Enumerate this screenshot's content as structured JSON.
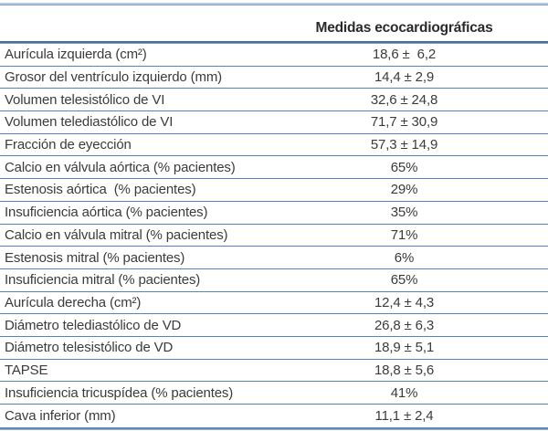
{
  "table": {
    "header": {
      "value_column_title": "Medidas ecocardiográficas"
    },
    "rows": [
      {
        "label": "Aurícula izquierda (cm²)",
        "value": "18,6 ±  6,2"
      },
      {
        "label": "Grosor del ventrículo izquierdo (mm)",
        "value": "14,4 ± 2,9"
      },
      {
        "label": "Volumen telesistólico de VI",
        "value": "32,6 ± 24,8"
      },
      {
        "label": "Volumen telediastólico de VI",
        "value": "71,7 ± 30,9"
      },
      {
        "label": "Fracción de eyección",
        "value": "57,3 ± 14,9"
      },
      {
        "label": "Calcio en válvula aórtica (% pacientes)",
        "value": "65%"
      },
      {
        "label": "Estenosis aórtica  (% pacientes)",
        "value": "29%"
      },
      {
        "label": "Insuficiencia aórtica (% pacientes)",
        "value": "35%"
      },
      {
        "label": "Calcio en válvula mitral (% pacientes)",
        "value": "71%"
      },
      {
        "label": "Estenosis mitral (% pacientes)",
        "value": "6%"
      },
      {
        "label": "Insuficiencia mitral (% pacientes)",
        "value": "65%"
      },
      {
        "label": "Aurícula derecha (cm²)",
        "value": "12,4 ± 4,3"
      },
      {
        "label": "Diámetro telediastólico de VD",
        "value": "26,8 ± 6,3"
      },
      {
        "label": "Diámetro telesistólico de VD",
        "value": "18,9 ± 5,1"
      },
      {
        "label": "TAPSE",
        "value": "18,8 ± 5,6"
      },
      {
        "label": "Insuficiencia tricuspídea (% pacientes)",
        "value": "41%"
      },
      {
        "label": "Cava inferior (mm)",
        "value": "11,1 ± 2,4"
      }
    ]
  },
  "colors": {
    "rule_blue": "#5585b8",
    "rule_light_blue": "#b7cbe3",
    "header_rule_dark": "#46688f",
    "text": "#3b3b3b",
    "header_text": "#2a2a2a",
    "background": "#ffffff"
  }
}
